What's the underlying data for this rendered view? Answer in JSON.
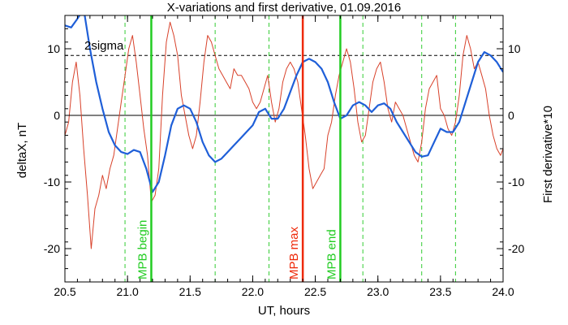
{
  "chart_data": {
    "type": "line",
    "title": "X-variations and first derivative, 01.09.2016",
    "xlabel": "UT, hours",
    "ylabel_left": "deltaX, nT",
    "ylabel_right": "First derivative*10",
    "xlim": [
      20.5,
      24.0
    ],
    "ylim": [
      -25,
      15
    ],
    "xticks": [
      20.5,
      21.0,
      21.5,
      22.0,
      22.5,
      23.0,
      23.5,
      24.0
    ],
    "xtick_labels": [
      "20.5",
      "21.0",
      "21.5",
      "22.0",
      "22.5",
      "23.0",
      "23.5",
      "24.0"
    ],
    "yticks": [
      10,
      0,
      -10,
      -20
    ],
    "ytick_labels_left": [
      "10",
      "0",
      "-10",
      "-20"
    ],
    "ytick_labels_right": [
      "10",
      "0",
      "-10",
      "-20"
    ],
    "threshold": {
      "label": "2sigma",
      "y": 9
    },
    "zero_line": 0,
    "colors": {
      "deltaX": "#1f5fd8",
      "derivative": "#d8412a",
      "mpb_edges": "#22cc22",
      "mpb_max": "#ee2a0a",
      "dashed_markers": "#33cc33",
      "axis": "#000000"
    },
    "vertical_markers": [
      {
        "x": 21.19,
        "label": "MPB begin",
        "kind": "mpb_edge"
      },
      {
        "x": 22.4,
        "label": "MPB max",
        "kind": "mpb_max"
      },
      {
        "x": 22.7,
        "label": "MPB end",
        "kind": "mpb_edge"
      }
    ],
    "dashed_lines": [
      20.98,
      21.7,
      22.13,
      22.88,
      23.35,
      23.62
    ],
    "series": [
      {
        "key": "deltaX",
        "x": [
          20.5,
          20.55,
          20.6,
          20.65,
          20.7,
          20.75,
          20.8,
          20.85,
          20.9,
          20.95,
          21.0,
          21.05,
          21.1,
          21.15,
          21.2,
          21.25,
          21.3,
          21.35,
          21.4,
          21.45,
          21.5,
          21.55,
          21.6,
          21.65,
          21.7,
          21.75,
          21.8,
          21.85,
          21.9,
          21.95,
          22.0,
          22.05,
          22.1,
          22.15,
          22.2,
          22.25,
          22.3,
          22.35,
          22.4,
          22.45,
          22.5,
          22.55,
          22.6,
          22.65,
          22.7,
          22.75,
          22.8,
          22.85,
          22.9,
          22.95,
          23.0,
          23.05,
          23.1,
          23.15,
          23.2,
          23.25,
          23.3,
          23.35,
          23.4,
          23.45,
          23.5,
          23.55,
          23.6,
          23.65,
          23.7,
          23.75,
          23.8,
          23.85,
          23.9,
          23.95,
          24.0
        ],
        "values": [
          13.5,
          13.2,
          14.5,
          16,
          10,
          5,
          1,
          -2.5,
          -4.5,
          -5.5,
          -5.8,
          -5.2,
          -5.5,
          -8,
          -11.5,
          -10,
          -6,
          -1.5,
          1,
          1.5,
          1,
          -1,
          -4,
          -6,
          -7,
          -6.5,
          -5.5,
          -4.5,
          -3.5,
          -2.5,
          -1.5,
          0.5,
          1,
          -0.5,
          -0.5,
          1,
          3.5,
          6,
          8,
          8.5,
          8,
          7,
          5,
          2,
          -0.5,
          0,
          1.5,
          2,
          1.5,
          0.5,
          1.5,
          1.8,
          1,
          -1,
          -2.5,
          -4,
          -5.5,
          -6.2,
          -6,
          -4,
          -2,
          -2.5,
          -2.5,
          -1,
          2,
          5,
          8,
          9.5,
          9,
          8,
          6.5
        ]
      },
      {
        "key": "derivative",
        "x": [
          20.5,
          20.53,
          20.56,
          20.59,
          20.62,
          20.65,
          20.68,
          20.71,
          20.74,
          20.77,
          20.8,
          20.83,
          20.86,
          20.89,
          20.92,
          20.95,
          20.98,
          21.01,
          21.04,
          21.07,
          21.1,
          21.13,
          21.16,
          21.19,
          21.22,
          21.25,
          21.28,
          21.31,
          21.34,
          21.37,
          21.4,
          21.43,
          21.46,
          21.49,
          21.52,
          21.55,
          21.58,
          21.61,
          21.64,
          21.67,
          21.7,
          21.73,
          21.76,
          21.79,
          21.82,
          21.85,
          21.88,
          21.91,
          21.94,
          21.97,
          22.0,
          22.03,
          22.06,
          22.09,
          22.12,
          22.15,
          22.18,
          22.21,
          22.24,
          22.27,
          22.3,
          22.33,
          22.36,
          22.39,
          22.42,
          22.45,
          22.48,
          22.51,
          22.54,
          22.57,
          22.6,
          22.63,
          22.66,
          22.69,
          22.72,
          22.75,
          22.78,
          22.81,
          22.84,
          22.87,
          22.9,
          22.93,
          22.96,
          22.99,
          23.02,
          23.05,
          23.08,
          23.11,
          23.14,
          23.17,
          23.2,
          23.23,
          23.26,
          23.29,
          23.32,
          23.35,
          23.38,
          23.41,
          23.44,
          23.47,
          23.5,
          23.53,
          23.56,
          23.59,
          23.62,
          23.65,
          23.68,
          23.71,
          23.74,
          23.77,
          23.8,
          23.83,
          23.86,
          23.89,
          23.92,
          23.95,
          23.98,
          24.0
        ],
        "values": [
          -3,
          -1,
          5,
          8,
          3,
          -5,
          -12,
          -20,
          -14,
          -12,
          -9,
          -11,
          -8,
          -6,
          -2,
          2,
          6,
          10,
          12,
          8,
          3,
          -2,
          -6,
          -13,
          -12,
          -8,
          3,
          11,
          14,
          12,
          9,
          3,
          0,
          -3,
          -5,
          -3,
          2,
          8,
          12,
          11,
          9,
          7,
          6,
          5,
          4,
          7,
          6,
          6,
          5,
          4,
          2,
          1,
          2,
          4,
          6,
          2,
          -1,
          1,
          5,
          7,
          8,
          7,
          5,
          1,
          -3,
          -8,
          -11,
          -10,
          -9,
          -8,
          -3,
          -1,
          3,
          6,
          8,
          10,
          8,
          4,
          -1,
          -4,
          -3,
          1,
          5,
          7,
          8,
          5,
          1,
          -1,
          2,
          1,
          0,
          -2,
          -4,
          -6,
          -7,
          -4,
          1,
          4,
          5,
          6,
          1,
          0,
          -2,
          -3,
          -1,
          3,
          9,
          12,
          10,
          7,
          8,
          6,
          4,
          0,
          -3,
          -5,
          -6,
          -5
        ]
      }
    ]
  }
}
